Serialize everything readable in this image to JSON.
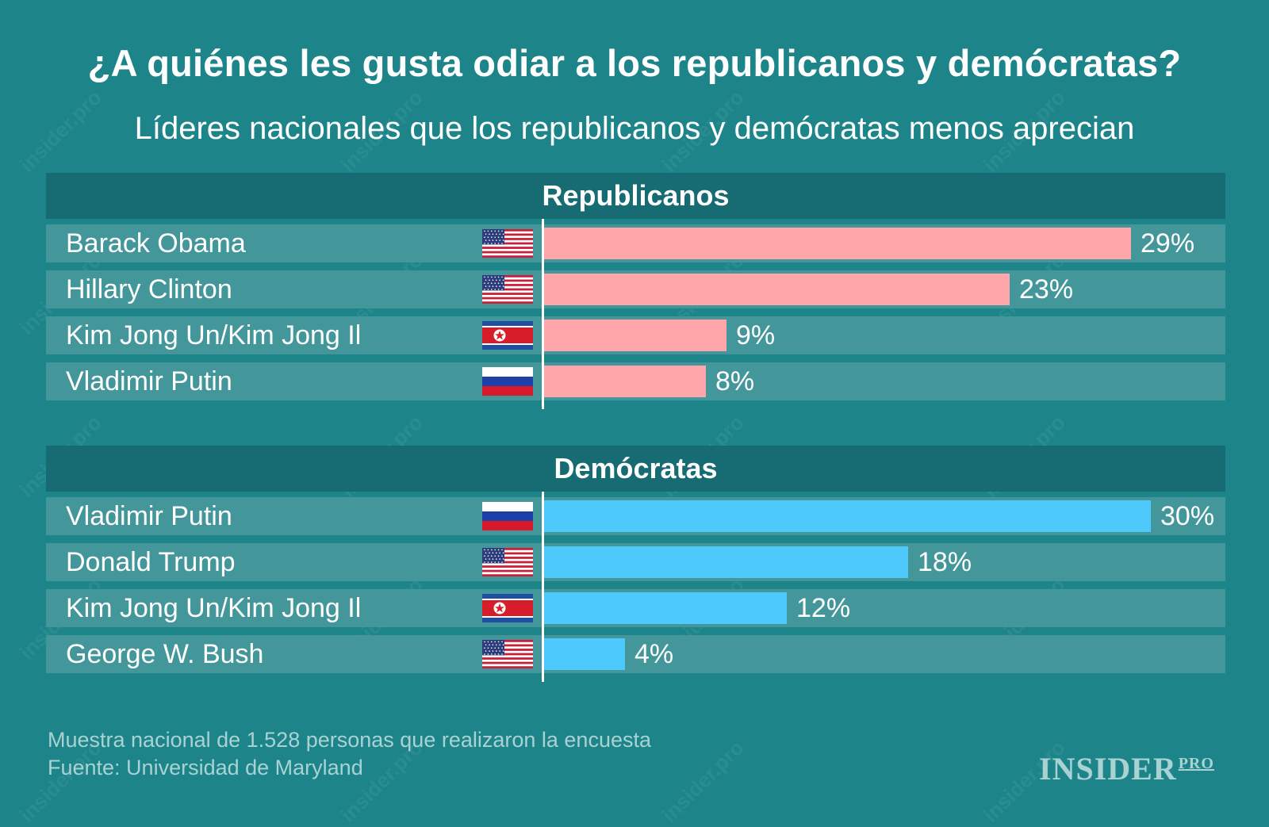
{
  "title": "¿A quiénes les gusta odiar a los republicanos y demócratas?",
  "subtitle": "Líderes nacionales que los republicanos y demócratas menos aprecian",
  "colors": {
    "republicanos_bar": "#ffa6ab",
    "democratas_bar": "#4ec9fb",
    "background": "#1d858a",
    "header": "#166c72",
    "row": "#43979a"
  },
  "chart_data": [
    {
      "type": "bar",
      "title": "Republicanos",
      "orientation": "horizontal",
      "categories": [
        "Barack Obama",
        "Hillary Clinton",
        "Kim Jong Un/Kim Jong Il",
        "Vladimir Putin"
      ],
      "flags": [
        "us-flag-icon",
        "us-flag-icon",
        "north-korea-flag-icon",
        "russia-flag-icon"
      ],
      "values": [
        29,
        23,
        9,
        8
      ],
      "labels": [
        "29%",
        "23%",
        "9%",
        "8%"
      ],
      "unit": "%",
      "xlim": [
        0,
        30
      ]
    },
    {
      "type": "bar",
      "title": "Demócratas",
      "orientation": "horizontal",
      "categories": [
        "Vladimir Putin",
        "Donald Trump",
        "Kim Jong Un/Kim Jong Il",
        "George W. Bush"
      ],
      "flags": [
        "russia-flag-icon",
        "us-flag-icon",
        "north-korea-flag-icon",
        "us-flag-icon"
      ],
      "values": [
        30,
        18,
        12,
        4
      ],
      "labels": [
        "30%",
        "18%",
        "12%",
        "4%"
      ],
      "unit": "%",
      "xlim": [
        0,
        30
      ]
    }
  ],
  "footer": {
    "note": "Muestra nacional de 1.528 personas que realizaron la encuesta",
    "source": "Fuente: Universidad de Maryland"
  },
  "logo": {
    "main": "INSIDER",
    "sup": "PRO"
  },
  "watermark": "insider.pro"
}
